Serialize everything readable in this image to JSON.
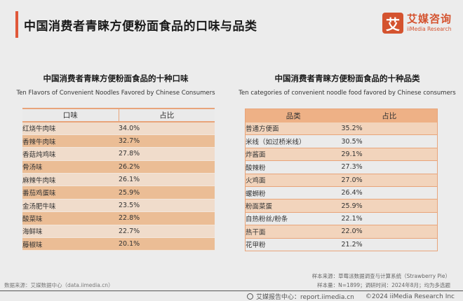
{
  "header": {
    "title": "中国消费者青睐方便粉面食品的口味与品类",
    "accent_color": "#e0583a"
  },
  "logo": {
    "mark": "艾",
    "cn": "艾媒咨询",
    "en": "iiMedia Research",
    "color": "#d4532f"
  },
  "chart_data": [
    {
      "type": "table",
      "title": "中国消费者青睐方便粉面食品的十种口味",
      "subtitle": "Ten Flavors of Convenient Noodles Favored by Chinese Consumers",
      "columns": [
        "口味",
        "占比"
      ],
      "categories": [
        "红烧牛肉味",
        "香辣牛肉味",
        "香菇炖鸡味",
        "骨汤味",
        "麻辣牛肉味",
        "番茄鸡蛋味",
        "金汤肥牛味",
        "酸菜味",
        "海鲜味",
        "藤椒味"
      ],
      "values": [
        34.0,
        32.7,
        27.8,
        26.2,
        26.1,
        25.9,
        23.5,
        22.8,
        22.7,
        20.1
      ],
      "rows": [
        {
          "name": "红烧牛肉味",
          "value": "34.0%"
        },
        {
          "name": "香辣牛肉味",
          "value": "32.7%"
        },
        {
          "name": "香菇炖鸡味",
          "value": "27.8%"
        },
        {
          "name": "骨汤味",
          "value": "26.2%"
        },
        {
          "name": "麻辣牛肉味",
          "value": "26.1%"
        },
        {
          "name": "番茄鸡蛋味",
          "value": "25.9%"
        },
        {
          "name": "金汤肥牛味",
          "value": "23.5%"
        },
        {
          "name": "酸菜味",
          "value": "22.8%"
        },
        {
          "name": "海鲜味",
          "value": "22.7%"
        },
        {
          "name": "藤椒味",
          "value": "20.1%"
        }
      ]
    },
    {
      "type": "table",
      "title": "中国消费者青睐方便粉面食品的十种品类",
      "subtitle": "Ten categories of convenient noodle food favored by Chinese consumers",
      "columns": [
        "品类",
        "占比"
      ],
      "categories": [
        "普通方便面",
        "米线（如过桥米线）",
        "炸酱面",
        "酸辣粉",
        "火鸡面",
        "螺蛳粉",
        "粉面菜蛋",
        "自热粉丝/粉条",
        "热干面",
        "花甲粉"
      ],
      "values": [
        35.2,
        30.5,
        29.1,
        27.3,
        27.0,
        26.4,
        25.9,
        22.1,
        22.0,
        21.2
      ],
      "rows": [
        {
          "name": "普通方便面",
          "value": "35.2%"
        },
        {
          "name": "米线（如过桥米线）",
          "value": "30.5%"
        },
        {
          "name": "炸酱面",
          "value": "29.1%"
        },
        {
          "name": "酸辣粉",
          "value": "27.3%"
        },
        {
          "name": "火鸡面",
          "value": "27.0%"
        },
        {
          "name": "螺蛳粉",
          "value": "26.4%"
        },
        {
          "name": "粉面菜蛋",
          "value": "25.9%"
        },
        {
          "name": "自热粉丝/粉条",
          "value": "22.1%"
        },
        {
          "name": "热干面",
          "value": "22.0%"
        },
        {
          "name": "花甲粉",
          "value": "21.2%"
        }
      ]
    }
  ],
  "source": {
    "data_source": "数据来源：艾媒数据中心（data.iimedia.cn）",
    "sample_source": "样本来源：草莓派数据调查与计算系统（Strawberry Pie）",
    "sample_info": "样本量：N=1899；调研时间：2024年8月；均为多选题"
  },
  "footer": {
    "report_center": "艾媒报告中心：report.iimedia.cn",
    "copyright": "©2024  iiMedia Research Inc"
  }
}
